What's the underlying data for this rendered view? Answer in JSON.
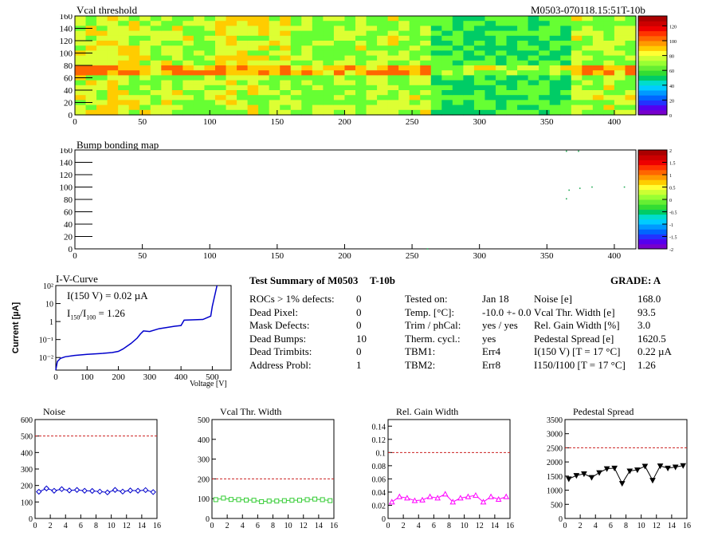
{
  "header": {
    "vcal_title": "Vcal threshold",
    "module_id": "M0503-070118.15:51T-10b",
    "bump_title": "Bump bonding map"
  },
  "maps": {
    "x_ticks": [
      "0",
      "50",
      "100",
      "150",
      "200",
      "250",
      "300",
      "350",
      "400"
    ],
    "y_ticks": [
      "0",
      "20",
      "40",
      "60",
      "80",
      "100",
      "120",
      "140",
      "160"
    ],
    "vcal_palette_ticks": [
      "0",
      "20",
      "40",
      "60",
      "80",
      "100",
      "120"
    ],
    "bump_palette_ticks": [
      "-2",
      "-1.5",
      "-1",
      "-0.5",
      "0",
      "0.5",
      "1",
      "1.5",
      "2"
    ]
  },
  "iv": {
    "title": "I-V-Curve",
    "ylabel": "Current [µA]",
    "xlabel": "Voltage [V]",
    "x_ticks": [
      "0",
      "100",
      "200",
      "300",
      "400",
      "500"
    ],
    "y_ticks": [
      "10⁻²",
      "10⁻¹",
      "1",
      "10",
      "10²"
    ],
    "i150_label": "I(150 V) = 0.02 µA",
    "ratio_label": "I150/I100 =  1.26"
  },
  "summary": {
    "title": "Test Summary of M0503",
    "tag": "T-10b",
    "grade": "GRADE:  A",
    "left_rows": [
      {
        "label": "ROCs > 1% defects:",
        "value": "0"
      },
      {
        "label": "Dead Pixel:",
        "value": "0"
      },
      {
        "label": "Mask Defects:",
        "value": "0"
      },
      {
        "label": "Dead Bumps:",
        "value": "10"
      },
      {
        "label": "Dead Trimbits:",
        "value": "0"
      },
      {
        "label": "Address Probl:",
        "value": "1"
      }
    ],
    "mid_rows": [
      {
        "label": "Tested on:",
        "value": "Jan 18"
      },
      {
        "label": "Temp. [°C]:",
        "value": "-10.0 +- 0.0"
      },
      {
        "label": "Trim / phCal:",
        "value": "yes / yes"
      },
      {
        "label": "Therm. cycl.:",
        "value": "yes"
      },
      {
        "label": "TBM1:",
        "value": "Err4"
      },
      {
        "label": "TBM2:",
        "value": "Err8"
      }
    ],
    "right_rows": [
      {
        "label": "Noise [e]",
        "value": "168.0"
      },
      {
        "label": "Vcal Thr. Width [e]",
        "value": "93.5"
      },
      {
        "label": "Rel. Gain Width [%]",
        "value": "3.0"
      },
      {
        "label": "Pedestal Spread [e]",
        "value": "1620.5"
      },
      {
        "label": "I(150 V) [T = 17 °C]",
        "value": "0.22 µA"
      },
      {
        "label": "I150/I100   [T = 17 °C]",
        "value": "1.26"
      }
    ]
  },
  "chart_data": [
    {
      "type": "line",
      "title": "Noise",
      "x": [
        0,
        1,
        2,
        3,
        4,
        5,
        6,
        7,
        8,
        9,
        10,
        11,
        12,
        13,
        14,
        15
      ],
      "values": [
        162,
        182,
        168,
        178,
        170,
        173,
        168,
        167,
        163,
        158,
        173,
        163,
        170,
        168,
        172,
        160
      ],
      "ylim": [
        0,
        600
      ],
      "xlim": [
        0,
        16
      ],
      "threshold": 500,
      "x_ticks": [
        "0",
        "2",
        "4",
        "6",
        "8",
        "10",
        "12",
        "14",
        "16"
      ],
      "y_ticks": [
        "0",
        "100",
        "200",
        "300",
        "400",
        "500",
        "600"
      ],
      "color": "#0000cc",
      "marker": "diamond"
    },
    {
      "type": "line",
      "title": "Vcal Thr. Width",
      "x": [
        0,
        1,
        2,
        3,
        4,
        5,
        6,
        7,
        8,
        9,
        10,
        11,
        12,
        13,
        14,
        15
      ],
      "values": [
        95,
        103,
        96,
        95,
        93,
        92,
        85,
        88,
        88,
        90,
        92,
        92,
        95,
        98,
        95,
        90
      ],
      "ylim": [
        0,
        500
      ],
      "xlim": [
        0,
        16
      ],
      "threshold": 200,
      "x_ticks": [
        "0",
        "2",
        "4",
        "6",
        "8",
        "10",
        "12",
        "14",
        "16"
      ],
      "y_ticks": [
        "0",
        "100",
        "200",
        "300",
        "400",
        "500"
      ],
      "color": "#33cc33",
      "marker": "square"
    },
    {
      "type": "line",
      "title": "Rel. Gain Width",
      "x": [
        0,
        1,
        2,
        3,
        4,
        5,
        6,
        7,
        8,
        9,
        10,
        11,
        12,
        13,
        14,
        15
      ],
      "values": [
        0.025,
        0.033,
        0.031,
        0.027,
        0.028,
        0.033,
        0.031,
        0.037,
        0.025,
        0.031,
        0.033,
        0.035,
        0.025,
        0.033,
        0.029,
        0.033
      ],
      "ylim": [
        0,
        0.15
      ],
      "xlim": [
        0,
        16
      ],
      "threshold": 0.1,
      "x_ticks": [
        "0",
        "2",
        "4",
        "6",
        "8",
        "10",
        "12",
        "14",
        "16"
      ],
      "y_ticks": [
        "0",
        "0.02",
        "0.04",
        "0.06",
        "0.08",
        "0.1",
        "0.12",
        "0.14"
      ],
      "color": "#ff00ff",
      "marker": "triangle"
    },
    {
      "type": "line",
      "title": "Pedestal Spread",
      "x": [
        0,
        1,
        2,
        3,
        4,
        5,
        6,
        7,
        8,
        9,
        10,
        11,
        12,
        13,
        14,
        15
      ],
      "values": [
        1400,
        1520,
        1580,
        1450,
        1620,
        1760,
        1780,
        1240,
        1680,
        1720,
        1850,
        1350,
        1860,
        1780,
        1820,
        1870
      ],
      "ylim": [
        0,
        3500
      ],
      "xlim": [
        0,
        16
      ],
      "threshold": 2500,
      "x_ticks": [
        "0",
        "2",
        "4",
        "6",
        "8",
        "10",
        "12",
        "14",
        "16"
      ],
      "y_ticks": [
        "0",
        "500",
        "1000",
        "1500",
        "2000",
        "2500",
        "3000",
        "3500"
      ],
      "color": "#000000",
      "marker": "triangle-down"
    },
    {
      "type": "line",
      "title": "I-V-Curve",
      "log_y": true,
      "x": [
        0,
        5,
        15,
        30,
        60,
        100,
        150,
        180,
        200,
        215,
        240,
        260,
        270,
        280,
        300,
        330,
        380,
        400,
        410,
        470,
        495,
        500,
        515
      ],
      "values": [
        0.002,
        0.006,
        0.009,
        0.011,
        0.013,
        0.015,
        0.017,
        0.019,
        0.022,
        0.03,
        0.06,
        0.12,
        0.2,
        0.3,
        0.28,
        0.4,
        0.55,
        0.6,
        1.2,
        1.3,
        2,
        7,
        100
      ],
      "xlim": [
        0,
        560
      ],
      "ylim": [
        0.002,
        100
      ],
      "color": "#0000cc"
    }
  ]
}
